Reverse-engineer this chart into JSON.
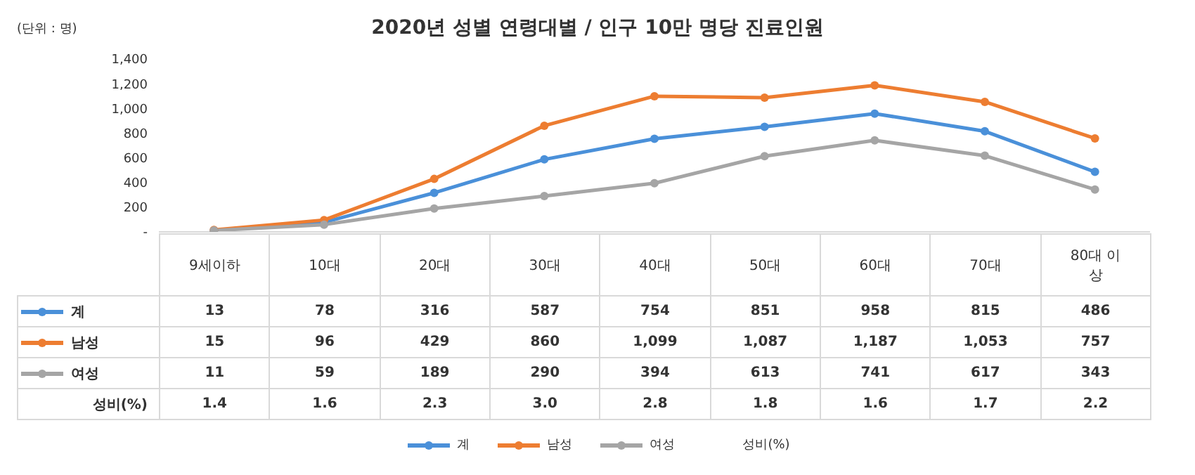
{
  "chart_data": {
    "type": "line",
    "title": "2020년 성별 연령대별 / 인구 10만 명당 진료인원",
    "ylabel": "(단위 : 명)",
    "categories": [
      "9세이하",
      "10대",
      "20대",
      "30대",
      "40대",
      "50대",
      "60대",
      "70대",
      "80대 이상"
    ],
    "series": [
      {
        "name": "계",
        "color": "#4a90d9",
        "values": [
          13,
          78,
          316,
          587,
          754,
          851,
          958,
          815,
          486
        ],
        "value_labels": [
          "13",
          "78",
          "316",
          "587",
          "754",
          "851",
          "958",
          "815",
          "486"
        ]
      },
      {
        "name": "남성",
        "color": "#ed7d31",
        "values": [
          15,
          96,
          429,
          860,
          1099,
          1087,
          1187,
          1053,
          757
        ],
        "value_labels": [
          "15",
          "96",
          "429",
          "860",
          "1,099",
          "1,087",
          "1,187",
          "1,053",
          "757"
        ]
      },
      {
        "name": "여성",
        "color": "#a5a5a5",
        "values": [
          11,
          59,
          189,
          290,
          394,
          613,
          741,
          617,
          343
        ],
        "value_labels": [
          "11",
          "59",
          "189",
          "290",
          "394",
          "613",
          "741",
          "617",
          "343"
        ]
      }
    ],
    "annotations": [
      "성비(%)",
      "1.4",
      "1.6",
      "2.3",
      "3.0",
      "2.8",
      "1.8",
      "1.6",
      "1.7",
      "2.2"
    ],
    "ylim": [
      0,
      1400
    ],
    "yticks": [
      {
        "value": 0,
        "label": "-"
      },
      200,
      400,
      600,
      800,
      {
        "value": 1000,
        "label": "1,000"
      },
      {
        "value": 1200,
        "label": "1,200"
      },
      {
        "value": 1400,
        "label": "1,400"
      }
    ],
    "marker": "circle",
    "legend": "bottom"
  }
}
